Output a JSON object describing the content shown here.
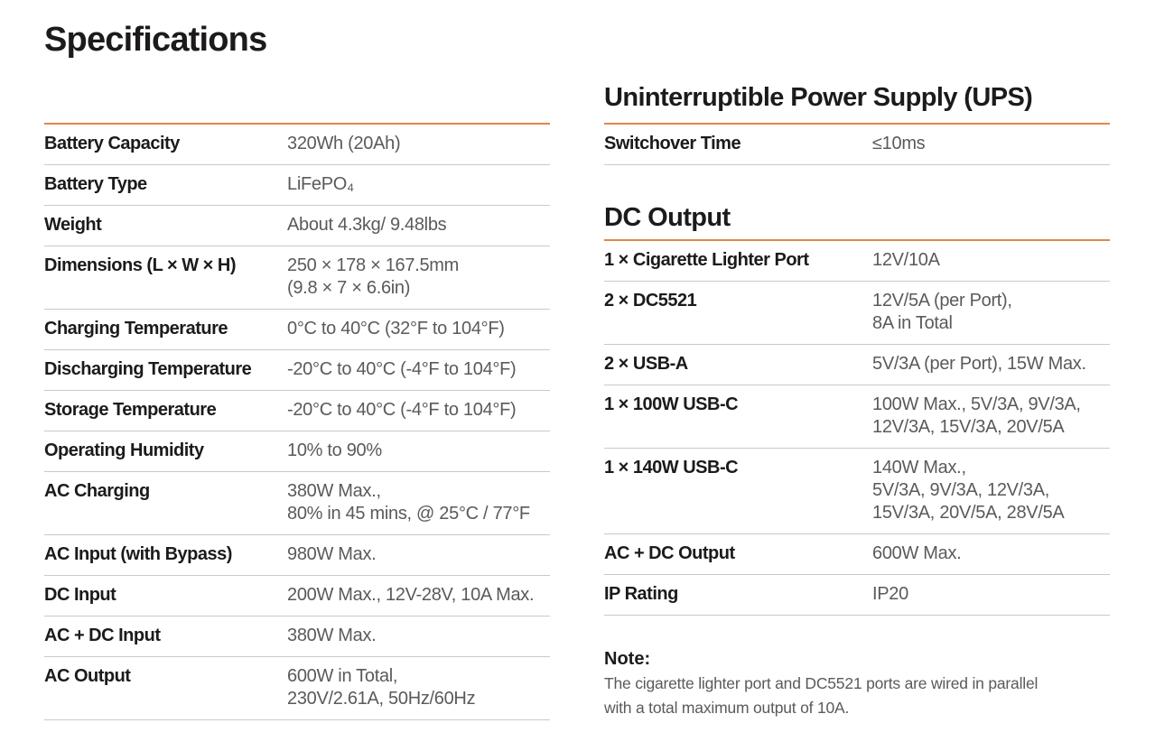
{
  "page": {
    "title": "Specifications"
  },
  "colors": {
    "accent": "#e1874c",
    "divider": "#c9c9c9",
    "label": "#1c1a1a",
    "value": "#5a5a5a"
  },
  "left_table": {
    "rows": [
      {
        "label": "Battery Capacity",
        "value": "320Wh (20Ah)"
      },
      {
        "label": "Battery Type",
        "value": "LiFePO₄"
      },
      {
        "label": "Weight",
        "value": "About 4.3kg/ 9.48lbs"
      },
      {
        "label": "Dimensions (L × W × H)",
        "value": "250 × 178 × 167.5mm\n(9.8 × 7 × 6.6in)"
      },
      {
        "label": "Charging Temperature",
        "value": "0°C to 40°C (32°F to 104°F)"
      },
      {
        "label": "Discharging Temperature",
        "value": "-20°C to 40°C (-4°F to 104°F)"
      },
      {
        "label": "Storage Temperature",
        "value": "-20°C to 40°C (-4°F to 104°F)"
      },
      {
        "label": "Operating Humidity",
        "value": "10% to 90%"
      },
      {
        "label": "AC Charging",
        "value": "380W Max.,\n80% in 45 mins, @ 25°C / 77°F"
      },
      {
        "label": "AC Input (with Bypass)",
        "value": "980W Max."
      },
      {
        "label": "DC Input",
        "value": "200W Max., 12V-28V, 10A Max."
      },
      {
        "label": "AC + DC Input",
        "value": "380W Max."
      },
      {
        "label": "AC Output",
        "value": "600W in Total,\n230V/2.61A, 50Hz/60Hz"
      }
    ]
  },
  "ups_section": {
    "heading": "Uninterruptible Power Supply (UPS)",
    "rows": [
      {
        "label": "Switchover Time",
        "value": "≤10ms"
      }
    ]
  },
  "dc_output_section": {
    "heading": "DC Output",
    "rows": [
      {
        "label": "1 × Cigarette Lighter Port",
        "value": "12V/10A"
      },
      {
        "label": "2 × DC5521",
        "value": "12V/5A (per Port),\n8A in Total"
      },
      {
        "label": "2 × USB-A",
        "value": "5V/3A (per Port), 15W Max."
      },
      {
        "label": "1 × 100W USB-C",
        "value": "100W Max., 5V/3A, 9V/3A,\n12V/3A, 15V/3A, 20V/5A"
      },
      {
        "label": "1 × 140W USB-C",
        "value": "140W Max.,\n5V/3A, 9V/3A, 12V/3A,\n15V/3A, 20V/5A, 28V/5A"
      },
      {
        "label": "AC + DC Output",
        "value": "600W Max."
      },
      {
        "label": "IP Rating",
        "value": "IP20"
      }
    ]
  },
  "note": {
    "title": "Note:",
    "text": "The cigarette lighter port and DC5521 ports are wired in parallel\nwith a total maximum output of 10A."
  }
}
